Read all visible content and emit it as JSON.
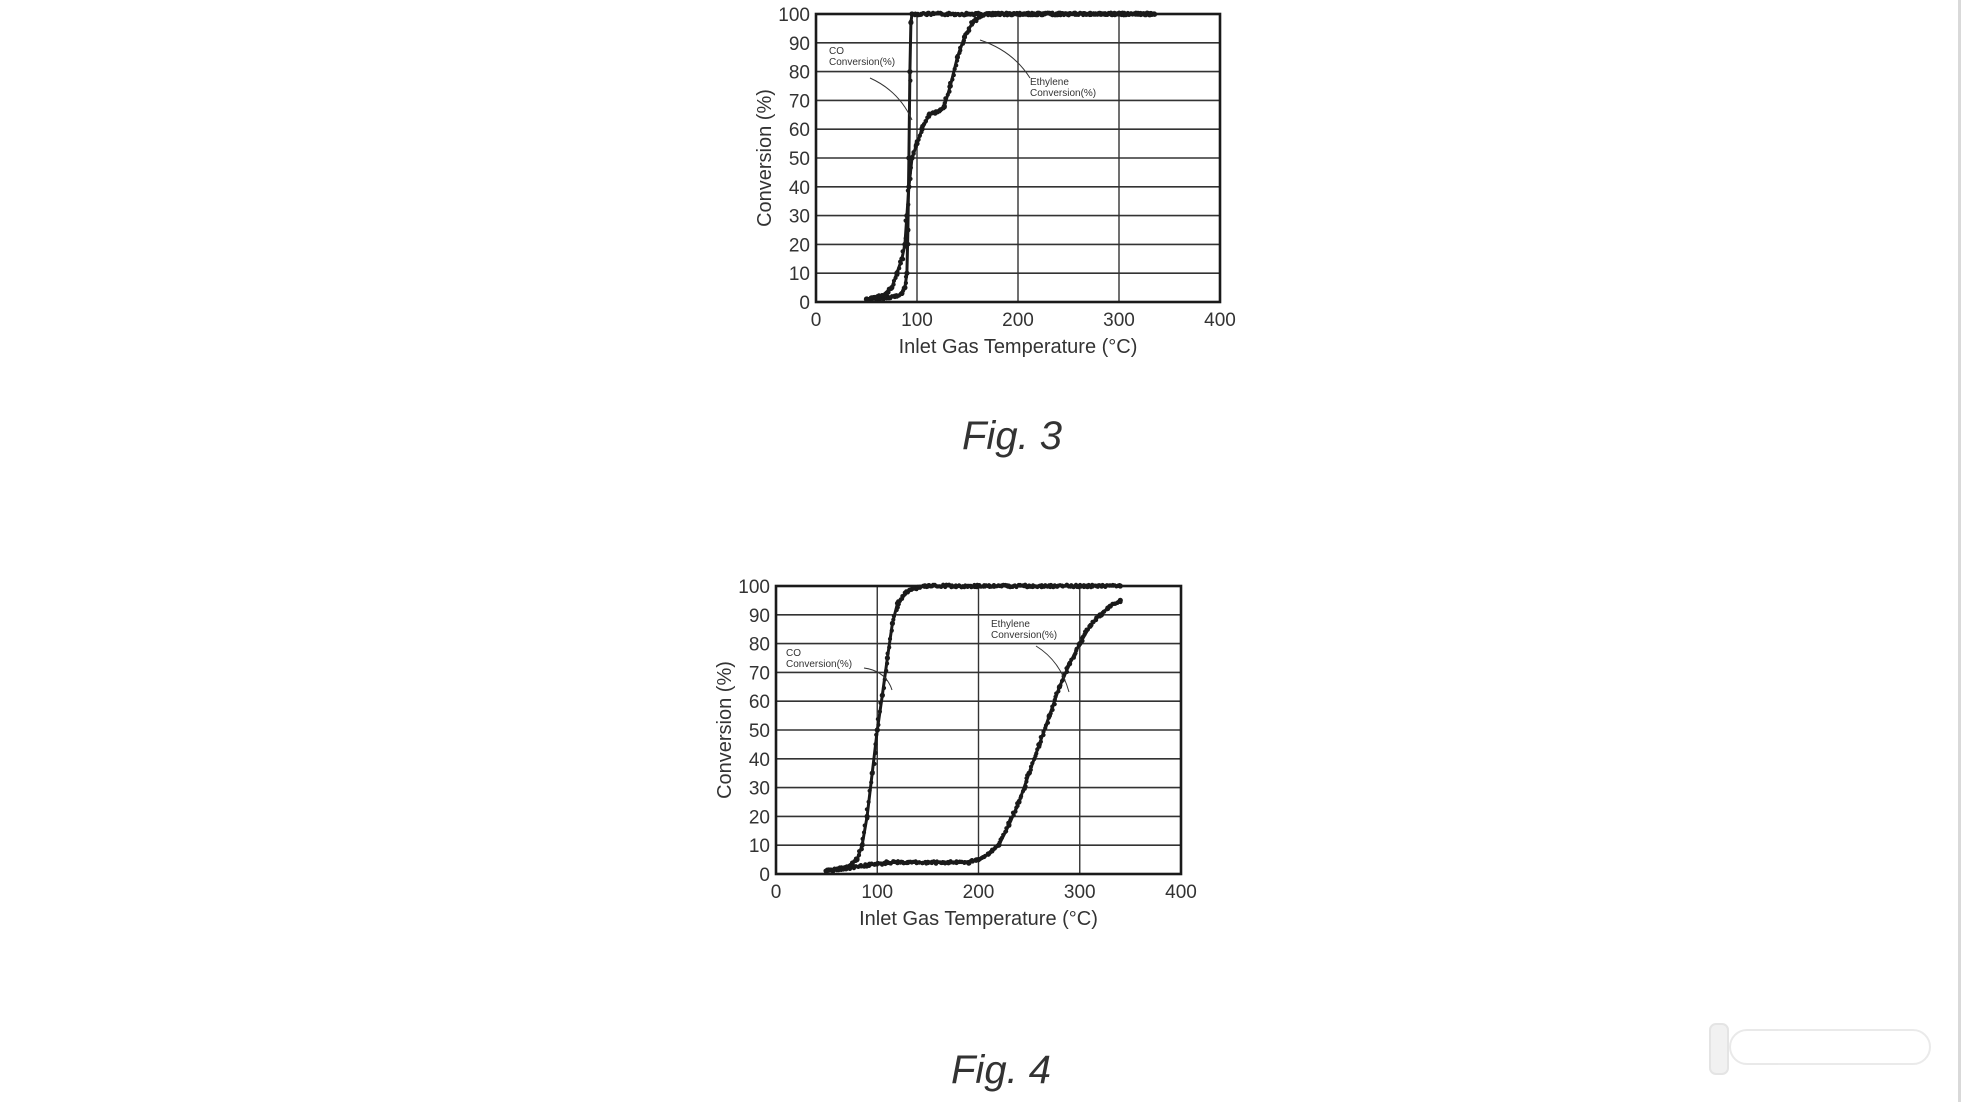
{
  "colors": {
    "background": "#ffffff",
    "ink": "#1a1a1a",
    "grid": "#333333",
    "text": "#333333"
  },
  "figures": [
    {
      "caption": "Fig. 3",
      "ylabel": "Conversion (%)",
      "xlabel": "Inlet Gas Temperature (°C)"
    },
    {
      "caption": "Fig. 4",
      "ylabel": "Conversion (%)",
      "xlabel": "Inlet Gas Temperature (°C)"
    }
  ],
  "chart_data": [
    {
      "type": "scatter",
      "title": "",
      "xlabel": "Inlet Gas Temperature (°C)",
      "ylabel": "Conversion (%)",
      "xlim": [
        0,
        400
      ],
      "ylim": [
        0,
        100
      ],
      "x_ticks": [
        0,
        100,
        200,
        300,
        400
      ],
      "y_ticks": [
        0,
        10,
        20,
        30,
        40,
        50,
        60,
        70,
        80,
        90,
        100
      ],
      "grid": true,
      "legend": "none",
      "series": [
        {
          "name": "CO Conversion(%)",
          "points": [
            [
              50,
              1
            ],
            [
              60,
              1
            ],
            [
              70,
              1.5
            ],
            [
              80,
              2
            ],
            [
              85,
              3
            ],
            [
              88,
              5
            ],
            [
              90,
              10
            ],
            [
              91,
              25
            ],
            [
              92,
              50
            ],
            [
              93,
              80
            ],
            [
              94,
              97
            ],
            [
              95,
              100
            ],
            [
              110,
              100
            ],
            [
              150,
              100
            ],
            [
              200,
              100
            ],
            [
              250,
              100
            ],
            [
              300,
              100
            ],
            [
              335,
              100
            ]
          ]
        },
        {
          "name": "Ethylene Conversion(%)",
          "points": [
            [
              50,
              1
            ],
            [
              60,
              1.5
            ],
            [
              70,
              3
            ],
            [
              75,
              5
            ],
            [
              80,
              10
            ],
            [
              85,
              15
            ],
            [
              88,
              20
            ],
            [
              90,
              30
            ],
            [
              92,
              40
            ],
            [
              95,
              50
            ],
            [
              100,
              55
            ],
            [
              105,
              60
            ],
            [
              112,
              65
            ],
            [
              120,
              66
            ],
            [
              127,
              68
            ],
            [
              133,
              75
            ],
            [
              140,
              85
            ],
            [
              147,
              92
            ],
            [
              155,
              97
            ],
            [
              162,
              99
            ],
            [
              170,
              100
            ],
            [
              200,
              100
            ],
            [
              250,
              100
            ],
            [
              300,
              100
            ],
            [
              335,
              100
            ]
          ]
        }
      ],
      "annotations": [
        {
          "lines": [
            "CO",
            "Conversion(%)"
          ],
          "target_series": "CO Conversion(%)"
        },
        {
          "lines": [
            "Ethylene",
            "Conversion(%)"
          ],
          "target_series": "Ethylene Conversion(%)"
        }
      ]
    },
    {
      "type": "scatter",
      "title": "",
      "xlabel": "Inlet Gas Temperature (°C)",
      "ylabel": "Conversion (%)",
      "xlim": [
        0,
        400
      ],
      "ylim": [
        0,
        100
      ],
      "x_ticks": [
        0,
        100,
        200,
        300,
        400
      ],
      "y_ticks": [
        0,
        10,
        20,
        30,
        40,
        50,
        60,
        70,
        80,
        90,
        100
      ],
      "grid": true,
      "legend": "none",
      "series": [
        {
          "name": "CO Conversion(%)",
          "points": [
            [
              50,
              1
            ],
            [
              60,
              1.5
            ],
            [
              70,
              2.5
            ],
            [
              80,
              5
            ],
            [
              85,
              10
            ],
            [
              90,
              20
            ],
            [
              95,
              35
            ],
            [
              100,
              50
            ],
            [
              105,
              62
            ],
            [
              110,
              75
            ],
            [
              115,
              87
            ],
            [
              120,
              94
            ],
            [
              130,
              98
            ],
            [
              140,
              99.5
            ],
            [
              150,
              100
            ],
            [
              200,
              100
            ],
            [
              250,
              100
            ],
            [
              300,
              100
            ],
            [
              340,
              100
            ]
          ]
        },
        {
          "name": "Ethylene Conversion(%)",
          "points": [
            [
              50,
              1
            ],
            [
              70,
              2
            ],
            [
              90,
              3
            ],
            [
              110,
              4
            ],
            [
              130,
              4
            ],
            [
              150,
              4
            ],
            [
              170,
              4
            ],
            [
              190,
              4
            ],
            [
              200,
              5
            ],
            [
              210,
              7
            ],
            [
              220,
              10
            ],
            [
              230,
              17
            ],
            [
              240,
              25
            ],
            [
              250,
              35
            ],
            [
              260,
              45
            ],
            [
              270,
              55
            ],
            [
              280,
              65
            ],
            [
              290,
              73
            ],
            [
              300,
              80
            ],
            [
              310,
              86
            ],
            [
              320,
              90
            ],
            [
              330,
              93
            ],
            [
              340,
              95
            ]
          ]
        }
      ],
      "annotations": [
        {
          "lines": [
            "CO",
            "Conversion(%)"
          ],
          "target_series": "CO Conversion(%)"
        },
        {
          "lines": [
            "Ethylene",
            "Conversion(%)"
          ],
          "target_series": "Ethylene Conversion(%)"
        }
      ]
    }
  ]
}
